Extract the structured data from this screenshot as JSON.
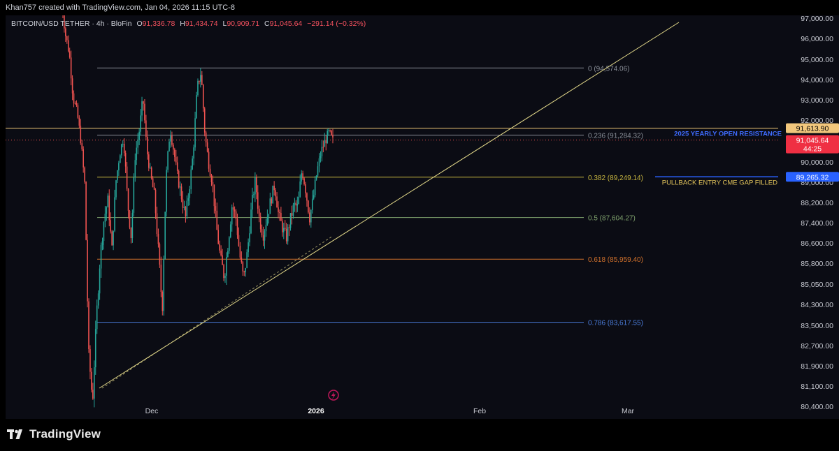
{
  "header": {
    "credit": "Khan757 created with TradingView.com, Jan 04, 2026 11:15 UTC-8"
  },
  "legend": {
    "symbol": "BITCOIN/USD TETHER · 4h · BloFin",
    "open_label": "O",
    "open": "91,336.78",
    "high_label": "H",
    "high": "91,434.74",
    "low_label": "L",
    "low": "90,909.71",
    "close_label": "C",
    "close": "91,045.64",
    "change": "−291.14 (−0.32%)"
  },
  "footer": {
    "brand": "TradingView"
  },
  "colors": {
    "up": "#26a69a",
    "down": "#ef5350",
    "background": "#0b0c14",
    "fib_0": "#8a8f98",
    "fib_0236": "#8a8f98",
    "fib_0382": "#c9b740",
    "fib_05": "#7ea06c",
    "fib_0618": "#d1712c",
    "fib_0786": "#4a7bd8",
    "trendline": "#e3d98a",
    "resistance": "#f0c776",
    "cme_line": "#2962ff"
  },
  "chart_data": {
    "type": "candlestick",
    "x_ticks": [
      "Dec",
      "2026",
      "Feb",
      "Mar"
    ],
    "y_ticks": [
      "97,000.00",
      "96,000.00",
      "95,000.00",
      "94,000.00",
      "93,000.00",
      "92,000.00",
      "90,000.00",
      "89,000.00",
      "88,200.00",
      "87,400.00",
      "86,600.00",
      "85,800.00",
      "85,050.00",
      "84,300.00",
      "83,500.00",
      "82,700.00",
      "81,900.00",
      "81,100.00",
      "80,400.00"
    ],
    "price_scale_labels": {
      "resistance": "91,613.90",
      "last_price": "91,045.64",
      "countdown": "44:25",
      "cme_level": "89,265.32"
    },
    "fib_levels": [
      {
        "label": "0 (94,574.06)",
        "value": 94574.06,
        "color_key": "fib_0"
      },
      {
        "label": "0.236 (91,284.32)",
        "value": 91284.32,
        "color_key": "fib_0236"
      },
      {
        "label": "0.382 (89,249.14)",
        "value": 89249.14,
        "color_key": "fib_0382"
      },
      {
        "label": "0.5 (87,604.27)",
        "value": 87604.27,
        "color_key": "fib_05"
      },
      {
        "label": "0.618 (85,959.40)",
        "value": 85959.4,
        "color_key": "fib_0618"
      },
      {
        "label": "0.786 (83,617.55)",
        "value": 83617.55,
        "color_key": "fib_0786"
      }
    ],
    "annotations": {
      "resistance_text": "2025 YEARLY OPEN RESISTANCE",
      "pullback_text": "PULLBACK ENTRY CME GAP FILLED"
    },
    "series": [
      {
        "name": "price",
        "anchor_values": [
          97900,
          96200,
          95300,
          93100,
          92400,
          91000,
          88900,
          82400,
          80500,
          83800,
          86100,
          87600,
          88300,
          86300,
          89000,
          90400,
          91200,
          88300,
          86800,
          90300,
          91400,
          93100,
          90600,
          89300,
          88400,
          86300,
          84100,
          89300,
          91600,
          90500,
          89200,
          88400,
          87600,
          88800,
          90500,
          93600,
          94400,
          91300,
          89900,
          88900,
          87200,
          86000,
          85300,
          86600,
          88100,
          87600,
          86100,
          85200,
          86300,
          88000,
          89100,
          87600,
          86900,
          87600,
          88300,
          88900,
          87700,
          87200,
          86800,
          87500,
          88100,
          88000,
          89600,
          88700,
          87600,
          88400,
          89600,
          90500,
          91000,
          91400,
          91000
        ]
      }
    ]
  }
}
